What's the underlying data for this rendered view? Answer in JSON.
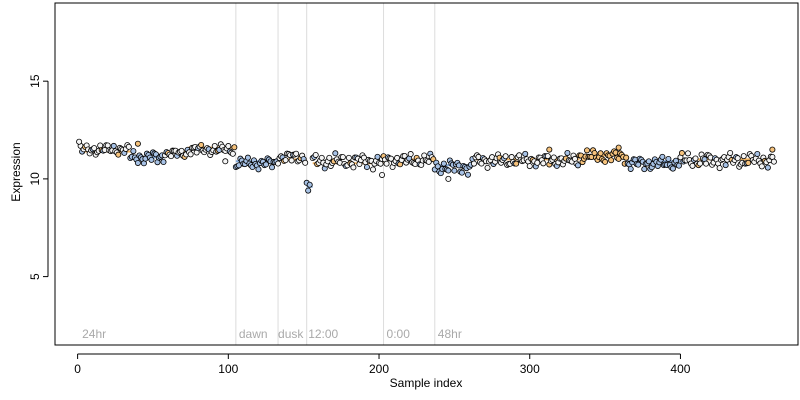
{
  "chart_data": {
    "type": "scatter",
    "xlabel": "Sample index",
    "ylabel": "Expression",
    "xlim": [
      -15,
      478
    ],
    "ylim": [
      1.5,
      19
    ],
    "xticks": [
      0,
      100,
      200,
      300,
      400
    ],
    "yticks": [
      5,
      10,
      15
    ],
    "grid": false,
    "colors": {
      "point_fill_light": "#f5f5f5",
      "point_fill_blue": "#a7c2e6",
      "point_fill_orange": "#f5c27c",
      "step_blue": "#7fa6d8",
      "step_orange": "#f0b25f",
      "vline": "#dcdcdc",
      "annotation": "#a9a9a9"
    },
    "phase_lines": [
      105,
      133,
      152,
      203,
      237
    ],
    "annotations": [
      {
        "x": 3,
        "text": "24hr"
      },
      {
        "x": 107,
        "text": "dawn"
      },
      {
        "x": 133,
        "text": "dusk"
      },
      {
        "x": 153,
        "text": "12:00"
      },
      {
        "x": 205,
        "text": "0:00"
      },
      {
        "x": 239,
        "text": "48hr"
      }
    ],
    "step_segments": [
      {
        "x0": 2,
        "x1": 35,
        "y": 11.4,
        "color": "orange"
      },
      {
        "x0": 35,
        "x1": 58,
        "y": 11.1,
        "color": "blue"
      },
      {
        "x0": 58,
        "x1": 73,
        "y": 11.4,
        "color": "orange"
      },
      {
        "x0": 73,
        "x1": 105,
        "y": 11.6,
        "color": "orange"
      },
      {
        "x0": 105,
        "x1": 133,
        "y": 10.9,
        "color": "blue"
      },
      {
        "x0": 133,
        "x1": 152,
        "y": 11.0,
        "color": "orange"
      },
      {
        "x0": 152,
        "x1": 156,
        "y": 9.6,
        "color": "blue"
      },
      {
        "x0": 156,
        "x1": 203,
        "y": 10.8,
        "color": "orange"
      },
      {
        "x0": 203,
        "x1": 237,
        "y": 11.0,
        "color": "orange"
      },
      {
        "x0": 237,
        "x1": 262,
        "y": 10.7,
        "color": "blue"
      },
      {
        "x0": 262,
        "x1": 333,
        "y": 11.0,
        "color": "orange"
      },
      {
        "x0": 333,
        "x1": 365,
        "y": 11.2,
        "color": "orange"
      },
      {
        "x0": 365,
        "x1": 400,
        "y": 10.9,
        "color": "blue"
      },
      {
        "x0": 400,
        "x1": 462,
        "y": 11.0,
        "color": "orange"
      }
    ],
    "segments": [
      {
        "start": 2,
        "end": 34,
        "level": 11.5,
        "amp": 0.18,
        "tint": "light"
      },
      {
        "start": 35,
        "end": 57,
        "level": 11.1,
        "amp": 0.22,
        "tint": "blue"
      },
      {
        "start": 58,
        "end": 72,
        "level": 11.3,
        "amp": 0.15,
        "tint": "light"
      },
      {
        "start": 73,
        "end": 104,
        "level": 11.5,
        "amp": 0.18,
        "tint": "light"
      },
      {
        "start": 105,
        "end": 132,
        "level": 10.8,
        "amp": 0.2,
        "tint": "blue"
      },
      {
        "start": 133,
        "end": 151,
        "level": 11.1,
        "amp": 0.2,
        "tint": "light"
      },
      {
        "start": 156,
        "end": 202,
        "level": 10.9,
        "amp": 0.25,
        "tint": "light"
      },
      {
        "start": 203,
        "end": 236,
        "level": 10.95,
        "amp": 0.22,
        "tint": "light"
      },
      {
        "start": 237,
        "end": 261,
        "level": 10.6,
        "amp": 0.25,
        "tint": "blue"
      },
      {
        "start": 262,
        "end": 332,
        "level": 10.95,
        "amp": 0.22,
        "tint": "light"
      },
      {
        "start": 333,
        "end": 364,
        "level": 11.15,
        "amp": 0.22,
        "tint": "orange"
      },
      {
        "start": 365,
        "end": 399,
        "level": 10.8,
        "amp": 0.22,
        "tint": "blue"
      },
      {
        "start": 400,
        "end": 462,
        "level": 10.95,
        "amp": 0.25,
        "tint": "light"
      }
    ],
    "extra_points": [
      {
        "x": 152,
        "y": 9.8,
        "tint": "blue"
      },
      {
        "x": 153,
        "y": 9.4,
        "tint": "blue"
      },
      {
        "x": 154,
        "y": 9.7,
        "tint": "blue"
      },
      {
        "x": 1,
        "y": 11.9,
        "tint": "light"
      },
      {
        "x": 40,
        "y": 11.8,
        "tint": "orange"
      },
      {
        "x": 98,
        "y": 10.9,
        "tint": "light"
      },
      {
        "x": 202,
        "y": 10.2,
        "tint": "light"
      },
      {
        "x": 246,
        "y": 10.0,
        "tint": "light"
      },
      {
        "x": 313,
        "y": 11.5,
        "tint": "orange"
      },
      {
        "x": 359,
        "y": 11.6,
        "tint": "orange"
      },
      {
        "x": 461,
        "y": 11.5,
        "tint": "orange"
      }
    ]
  }
}
